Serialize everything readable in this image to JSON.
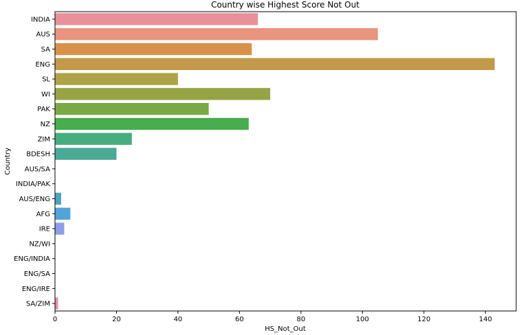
{
  "chart_data": {
    "type": "bar",
    "orientation": "horizontal",
    "title": "Country wise Highest Score Not Out",
    "xlabel": "HS_Not_Out",
    "ylabel": "Country",
    "xlim": [
      0,
      150
    ],
    "x_ticks": [
      0,
      20,
      40,
      60,
      80,
      100,
      120,
      140
    ],
    "grid": false,
    "legend": "none",
    "categories": [
      "INDIA",
      "AUS",
      "SA",
      "ENG",
      "SL",
      "WI",
      "PAK",
      "NZ",
      "ZIM",
      "BDESH",
      "AUS/SA",
      "INDIA/PAK",
      "AUS/ENG",
      "AFG",
      "IRE",
      "NZ/WI",
      "ENG/INDIA",
      "ENG/SA",
      "ENG/IRE",
      "SA/ZIM"
    ],
    "values": [
      66,
      105,
      64,
      143,
      40,
      70,
      50,
      63,
      25,
      20,
      0,
      0,
      2,
      5,
      3,
      0,
      0,
      0,
      0,
      1
    ],
    "colors": [
      "#e8919b",
      "#e8947f",
      "#d8914a",
      "#c29948",
      "#aca446",
      "#97a445",
      "#7aa845",
      "#47ad4e",
      "#47ad7f",
      "#4aaa95",
      "#4da89f",
      "#4ea6aa",
      "#4fa4b8",
      "#52a3d8",
      "#8e9ee8",
      "#a896e6",
      "#c68ce6",
      "#de84dc",
      "#e484c6",
      "#e58bb4"
    ]
  }
}
